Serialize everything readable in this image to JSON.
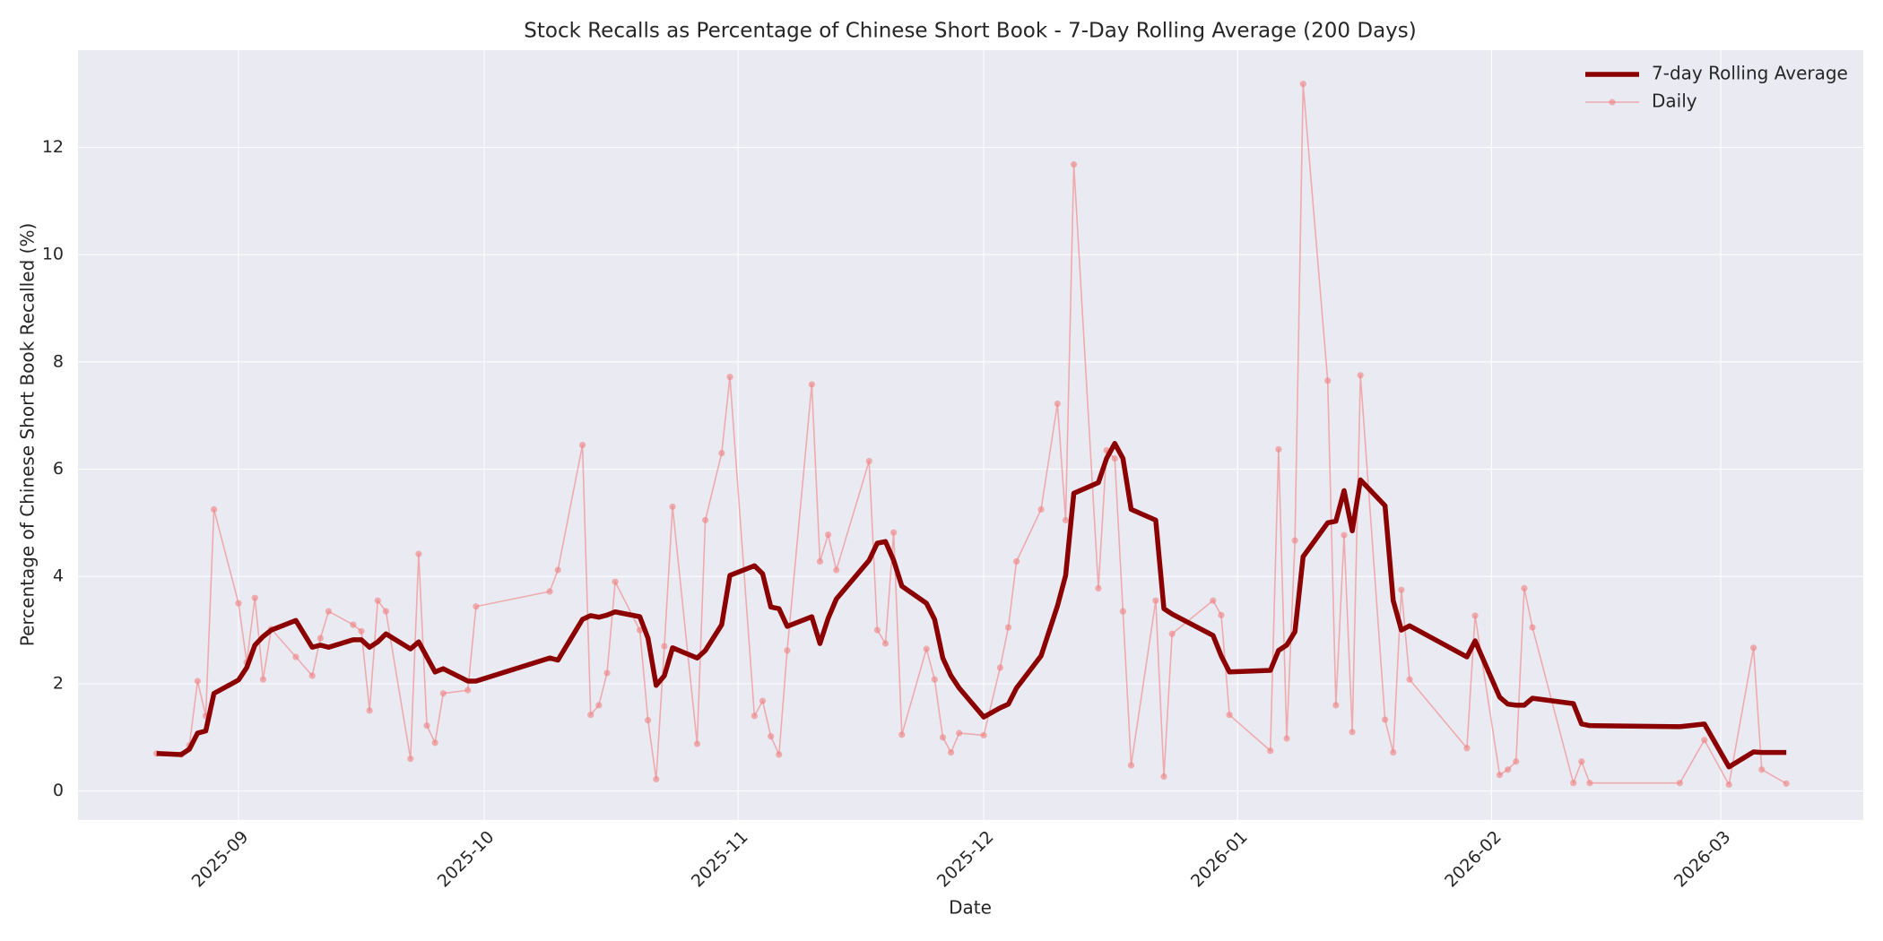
{
  "chart_data": {
    "type": "line",
    "title": "Stock Recalls as Percentage of Chinese Short Book - 7-Day Rolling Average (200 Days)",
    "x_label": "Date",
    "y_label": "Percentage of Chinese Short Book Recalled (%)",
    "x": [
      -10,
      -7,
      -6,
      -5,
      -4,
      -3,
      0,
      1,
      2,
      3,
      4,
      7,
      9,
      10,
      11,
      14,
      15,
      16,
      17,
      18,
      21,
      22,
      23,
      24,
      25,
      28,
      29,
      38,
      39,
      42,
      43,
      44,
      45,
      46,
      49,
      50,
      51,
      52,
      53,
      56,
      57,
      59,
      60,
      63,
      64,
      65,
      66,
      67,
      70,
      71,
      72,
      73,
      77,
      78,
      79,
      80,
      81,
      84,
      85,
      86,
      87,
      88,
      91,
      93,
      94,
      95,
      98,
      100,
      101,
      102,
      105,
      106,
      107,
      108,
      109,
      112,
      113,
      114,
      119,
      120,
      121,
      126,
      127,
      128,
      129,
      130,
      133,
      134,
      135,
      136,
      137,
      140,
      141,
      142,
      143,
      150,
      151,
      154,
      155,
      156,
      157,
      158,
      163,
      164,
      165,
      176,
      179,
      182,
      185,
      186,
      189
    ],
    "series": [
      {
        "name": "7-day Rolling Average",
        "color": "#8b0000",
        "marker": false,
        "values": [
          0.7,
          0.68,
          0.78,
          1.08,
          1.12,
          1.82,
          2.07,
          2.3,
          2.72,
          2.88,
          3.0,
          3.18,
          2.68,
          2.72,
          2.68,
          2.82,
          2.82,
          2.68,
          2.78,
          2.93,
          2.65,
          2.78,
          2.5,
          2.22,
          2.28,
          2.05,
          2.05,
          2.48,
          2.44,
          3.2,
          3.27,
          3.24,
          3.28,
          3.34,
          3.25,
          2.85,
          1.97,
          2.15,
          2.67,
          2.48,
          2.62,
          3.1,
          4.02,
          4.2,
          4.05,
          3.43,
          3.4,
          3.07,
          3.25,
          2.75,
          3.22,
          3.58,
          4.3,
          4.62,
          4.65,
          4.3,
          3.82,
          3.5,
          3.2,
          2.48,
          2.15,
          1.92,
          1.38,
          1.55,
          1.62,
          1.92,
          2.52,
          3.45,
          4.02,
          5.55,
          5.75,
          6.2,
          6.48,
          6.2,
          5.25,
          5.05,
          3.4,
          3.3,
          2.9,
          2.52,
          2.22,
          2.25,
          2.62,
          2.72,
          2.97,
          4.37,
          5.0,
          5.03,
          5.6,
          4.85,
          5.8,
          5.32,
          3.55,
          3.0,
          3.08,
          2.5,
          2.8,
          1.75,
          1.62,
          1.6,
          1.6,
          1.73,
          1.63,
          1.25,
          1.22,
          1.2,
          1.25,
          0.45,
          0.73,
          0.72,
          0.72
        ]
      },
      {
        "name": "Daily",
        "color": "#f08080",
        "marker": true,
        "values": [
          0.7,
          0.68,
          0.85,
          2.05,
          1.4,
          5.25,
          3.5,
          2.4,
          3.6,
          2.08,
          3.02,
          2.5,
          2.15,
          2.85,
          3.35,
          3.1,
          2.98,
          1.5,
          3.55,
          3.35,
          0.6,
          4.42,
          1.22,
          0.9,
          1.82,
          1.88,
          3.44,
          3.72,
          4.12,
          6.45,
          1.42,
          1.6,
          2.2,
          3.9,
          3.0,
          1.32,
          0.22,
          2.7,
          5.3,
          0.88,
          5.05,
          6.3,
          7.72,
          1.4,
          1.68,
          1.02,
          0.68,
          2.62,
          7.58,
          4.28,
          4.78,
          4.12,
          6.15,
          3.0,
          2.75,
          4.82,
          1.05,
          2.65,
          2.08,
          1.0,
          0.72,
          1.08,
          1.04,
          2.3,
          3.05,
          4.28,
          5.25,
          7.22,
          5.05,
          11.68,
          3.78,
          6.35,
          6.2,
          3.35,
          0.48,
          3.55,
          0.27,
          2.93,
          3.55,
          3.28,
          1.42,
          0.75,
          6.37,
          0.98,
          4.67,
          13.18,
          7.65,
          1.6,
          4.77,
          1.1,
          7.75,
          1.33,
          0.72,
          3.75,
          2.08,
          0.8,
          3.27,
          0.3,
          0.4,
          0.55,
          3.78,
          3.05,
          0.15,
          0.55,
          0.15,
          0.15,
          0.95,
          0.12,
          2.67,
          0.4,
          0.14
        ]
      }
    ],
    "xlim": [
      -19.6,
      198.4
    ],
    "xticks": [
      {
        "value": 0,
        "label": "2025-09"
      },
      {
        "value": 30,
        "label": "2025-10"
      },
      {
        "value": 61,
        "label": "2025-11"
      },
      {
        "value": 91,
        "label": "2025-12"
      },
      {
        "value": 122,
        "label": "2026-01"
      },
      {
        "value": 153,
        "label": "2026-02"
      },
      {
        "value": 181,
        "label": "2026-03"
      }
    ],
    "ylim": [
      -0.54,
      13.81
    ],
    "yticks": [
      0,
      2,
      4,
      6,
      8,
      10,
      12
    ],
    "grid": true,
    "legend": "upper right"
  }
}
